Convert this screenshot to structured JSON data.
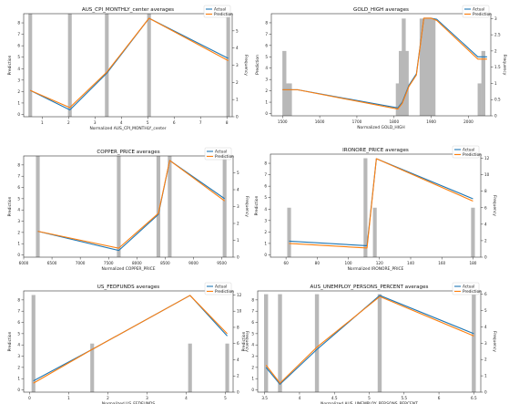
{
  "colors": {
    "actual": "#1f77b4",
    "prediction": "#ff7f0e",
    "frequency": "#b8b8b8",
    "axis": "#333333"
  },
  "chart_data": [
    {
      "type": "line",
      "title": "AUS_CPI_MONTHLY_center averages",
      "xlabel": "Normalized AUS_CPI_MONTHLY_center",
      "ylabel": "Prediction",
      "y2label": "Frequency",
      "xlim": [
        0.3,
        8.2
      ],
      "ylim": [
        -0.2,
        8.8
      ],
      "y2lim": [
        0,
        6
      ],
      "xticks": [
        1,
        2,
        3,
        4,
        5,
        6,
        7,
        8
      ],
      "yticks": [
        0,
        1,
        2,
        3,
        4,
        5,
        6,
        7,
        8
      ],
      "y2ticks": [
        0,
        1,
        2,
        3,
        4,
        5
      ],
      "legend": "top-right",
      "grid": false,
      "histogram": {
        "x": [
          0.55,
          2.05,
          3.45,
          5.05,
          8.05
        ],
        "counts": [
          6,
          6,
          6,
          6,
          6
        ]
      },
      "series": [
        {
          "name": "Actual",
          "x": [
            0.55,
            2.05,
            3.45,
            5.05,
            8.05
          ],
          "y": [
            2.1,
            0.4,
            3.6,
            8.4,
            4.9
          ]
        },
        {
          "name": "Prediction",
          "x": [
            0.55,
            2.05,
            3.45,
            5.05,
            8.05
          ],
          "y": [
            2.1,
            0.6,
            3.7,
            8.4,
            4.7
          ]
        }
      ]
    },
    {
      "type": "line",
      "title": "GOLD_HIGH averages",
      "xlabel": "Normalized GOLD_HIGH",
      "ylabel": "Prediction",
      "y2label": "Frequency",
      "xlim": [
        1470,
        2060
      ],
      "ylim": [
        -0.2,
        8.8
      ],
      "y2lim": [
        0,
        3.15
      ],
      "xticks": [
        1500,
        1600,
        1700,
        1800,
        1900,
        2000
      ],
      "yticks": [
        0,
        1,
        2,
        3,
        4,
        5,
        6,
        7,
        8
      ],
      "y2ticks": [
        0.0,
        0.5,
        1.0,
        1.5,
        2.0,
        2.5,
        3.0
      ],
      "legend": "top-right",
      "grid": false,
      "histogram": {
        "x": [
          1505,
          1512,
          1520,
          1810,
          1818,
          1826,
          1834,
          1874,
          1882,
          1890,
          1898,
          1906,
          2030,
          2040
        ],
        "counts": [
          2,
          1,
          1,
          1,
          2,
          3,
          2,
          3,
          3,
          3,
          3,
          3,
          1,
          2
        ]
      },
      "series": [
        {
          "name": "Actual",
          "x": [
            1500,
            1540,
            1810,
            1822,
            1840,
            1860,
            1880,
            1900,
            1915,
            2025,
            2050
          ],
          "y": [
            2.1,
            2.1,
            0.5,
            1.0,
            2.5,
            3.5,
            8.4,
            8.4,
            8.3,
            5.0,
            5.0
          ]
        },
        {
          "name": "Prediction",
          "x": [
            1500,
            1540,
            1810,
            1822,
            1840,
            1860,
            1880,
            1900,
            1915,
            2025,
            2050
          ],
          "y": [
            2.1,
            2.1,
            0.4,
            0.9,
            2.4,
            3.4,
            8.4,
            8.4,
            8.2,
            4.8,
            4.8
          ]
        }
      ]
    },
    {
      "type": "line",
      "title": "COPPER_PRICE averages",
      "xlabel": "Normalized COPPER_PRICE",
      "ylabel": "Prediction",
      "y2label": "Frequency",
      "xlim": [
        6000,
        9700
      ],
      "ylim": [
        -0.2,
        8.8
      ],
      "y2lim": [
        0,
        6
      ],
      "xticks": [
        6000,
        6500,
        7000,
        7500,
        8000,
        8500,
        9000,
        9500
      ],
      "yticks": [
        0,
        1,
        2,
        3,
        4,
        5,
        6,
        7,
        8
      ],
      "y2ticks": [
        0,
        1,
        2,
        3,
        4,
        5
      ],
      "legend": "top-right",
      "grid": false,
      "histogram": {
        "x": [
          6250,
          7680,
          8380,
          8580,
          9550
        ],
        "counts": [
          6,
          6,
          6,
          6,
          6
        ]
      },
      "series": [
        {
          "name": "Actual",
          "x": [
            6250,
            7680,
            8380,
            8580,
            9550
          ],
          "y": [
            2.1,
            0.4,
            3.6,
            8.4,
            5.0
          ]
        },
        {
          "name": "Prediction",
          "x": [
            6250,
            7680,
            8380,
            8580,
            9550
          ],
          "y": [
            2.1,
            0.6,
            3.7,
            8.4,
            4.8
          ]
        }
      ]
    },
    {
      "type": "line",
      "title": "IRONORE_PRICE averages",
      "xlabel": "Normalized IRONORE_PRICE",
      "ylabel": "Prediction",
      "y2label": "Frequency",
      "xlim": [
        50,
        185
      ],
      "ylim": [
        -0.2,
        8.8
      ],
      "y2lim": [
        0,
        12.5
      ],
      "xticks": [
        60,
        80,
        100,
        120,
        140,
        160,
        180
      ],
      "yticks": [
        0,
        1,
        2,
        3,
        4,
        5,
        6,
        7,
        8
      ],
      "y2ticks": [
        0,
        2,
        4,
        6,
        8,
        10,
        12
      ],
      "legend": "top-right",
      "grid": false,
      "histogram": {
        "x": [
          62,
          111,
          117,
          180
        ],
        "counts": [
          6,
          12,
          6,
          6
        ]
      },
      "series": [
        {
          "name": "Actual",
          "x": [
            62,
            112,
            118,
            180
          ],
          "y": [
            1.2,
            0.8,
            8.4,
            4.9
          ]
        },
        {
          "name": "Prediction",
          "x": [
            62,
            112,
            118,
            180
          ],
          "y": [
            1.0,
            0.6,
            8.4,
            4.7
          ]
        }
      ]
    },
    {
      "type": "line",
      "title": "US_FEDFUNDS averages",
      "xlabel": "Normalized US_FEDFUNDS",
      "ylabel": "Prediction",
      "y2label": "Frequency",
      "xlim": [
        -0.15,
        5.2
      ],
      "ylim": [
        -0.2,
        8.8
      ],
      "y2lim": [
        0,
        12.5
      ],
      "xticks": [
        0,
        1,
        2,
        3,
        4,
        5
      ],
      "yticks": [
        0,
        1,
        2,
        3,
        4,
        5,
        6,
        7,
        8
      ],
      "y2ticks": [
        0,
        2,
        4,
        6,
        8,
        10,
        12
      ],
      "legend": "top-right",
      "grid": false,
      "histogram": {
        "x": [
          0.1,
          1.6,
          4.1,
          5.05
        ],
        "counts": [
          12,
          6,
          6,
          6
        ]
      },
      "series": [
        {
          "name": "Actual",
          "x": [
            0.1,
            1.6,
            4.1,
            5.05
          ],
          "y": [
            0.8,
            3.6,
            8.4,
            4.8
          ]
        },
        {
          "name": "Prediction",
          "x": [
            0.1,
            1.6,
            4.1,
            5.05
          ],
          "y": [
            0.6,
            3.6,
            8.4,
            5.0
          ]
        }
      ]
    },
    {
      "type": "line",
      "title": "AUS_UNEMPLOY_PERSONS_PERCENT averages",
      "xlabel": "Normalized AUS_UNEMPLOY_PERSONS_PERCENT",
      "ylabel": "Prediction",
      "y2label": "Frequency",
      "xlim": [
        3.4,
        6.6
      ],
      "ylim": [
        -0.2,
        8.8
      ],
      "y2lim": [
        0,
        6.2
      ],
      "xticks": [
        3.5,
        4.0,
        4.5,
        5.0,
        5.5,
        6.0,
        6.5
      ],
      "yticks": [
        0,
        1,
        2,
        3,
        4,
        5,
        6,
        7,
        8
      ],
      "y2ticks": [
        0,
        1,
        2,
        3,
        4,
        5,
        6
      ],
      "legend": "top-right",
      "grid": false,
      "histogram": {
        "x": [
          3.52,
          3.72,
          4.25,
          5.15,
          6.5
        ],
        "counts": [
          6,
          6,
          6,
          6,
          6
        ]
      },
      "series": [
        {
          "name": "Actual",
          "x": [
            3.52,
            3.72,
            4.25,
            5.15,
            6.5
          ],
          "y": [
            2.0,
            0.5,
            3.6,
            8.4,
            5.0
          ]
        },
        {
          "name": "Prediction",
          "x": [
            3.52,
            3.72,
            4.25,
            5.15,
            6.5
          ],
          "y": [
            2.2,
            0.6,
            3.8,
            8.3,
            4.8
          ]
        }
      ]
    }
  ]
}
